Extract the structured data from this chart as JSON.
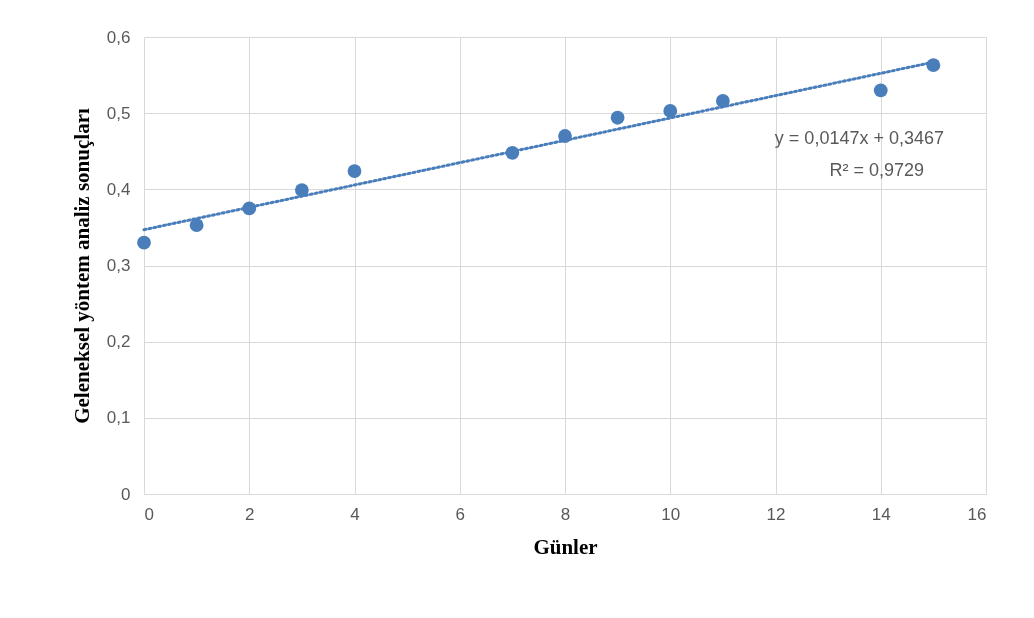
{
  "chart_data": {
    "type": "scatter",
    "xlabel": "Günler",
    "ylabel": "Geleneksel yöntem analiz sonuçları",
    "x": [
      0,
      1,
      2,
      3,
      4,
      7,
      8,
      9,
      10,
      11,
      14,
      15
    ],
    "series": [
      {
        "color": "#4a7ebb",
        "marker": "circle",
        "values": [
          0.33,
          0.353,
          0.375,
          0.399,
          0.424,
          0.448,
          0.47,
          0.494,
          0.503,
          0.516,
          0.53,
          0.563
        ]
      },
      {
        "type": "line",
        "color": "#4a7ebb",
        "line_style": "dotted",
        "x": [
          0,
          15
        ],
        "values": [
          0.347,
          0.567
        ]
      }
    ],
    "annotations": [
      "y = 0,0147x + 0,3467",
      "R² = 0,9729"
    ],
    "xlim": [
      0,
      16
    ],
    "xticks": [
      0,
      2,
      4,
      6,
      8,
      10,
      12,
      14,
      16
    ],
    "ylim": [
      0,
      0.6
    ],
    "yticks": [
      0,
      {
        "value": 0.1,
        "label": "0,1"
      },
      {
        "value": 0.2,
        "label": "0,2"
      },
      {
        "value": 0.3,
        "label": "0,3"
      },
      {
        "value": 0.4,
        "label": "0,4"
      },
      {
        "value": 0.5,
        "label": "0,5"
      },
      {
        "value": 0.6,
        "label": "0,6"
      }
    ],
    "grid": true
  }
}
